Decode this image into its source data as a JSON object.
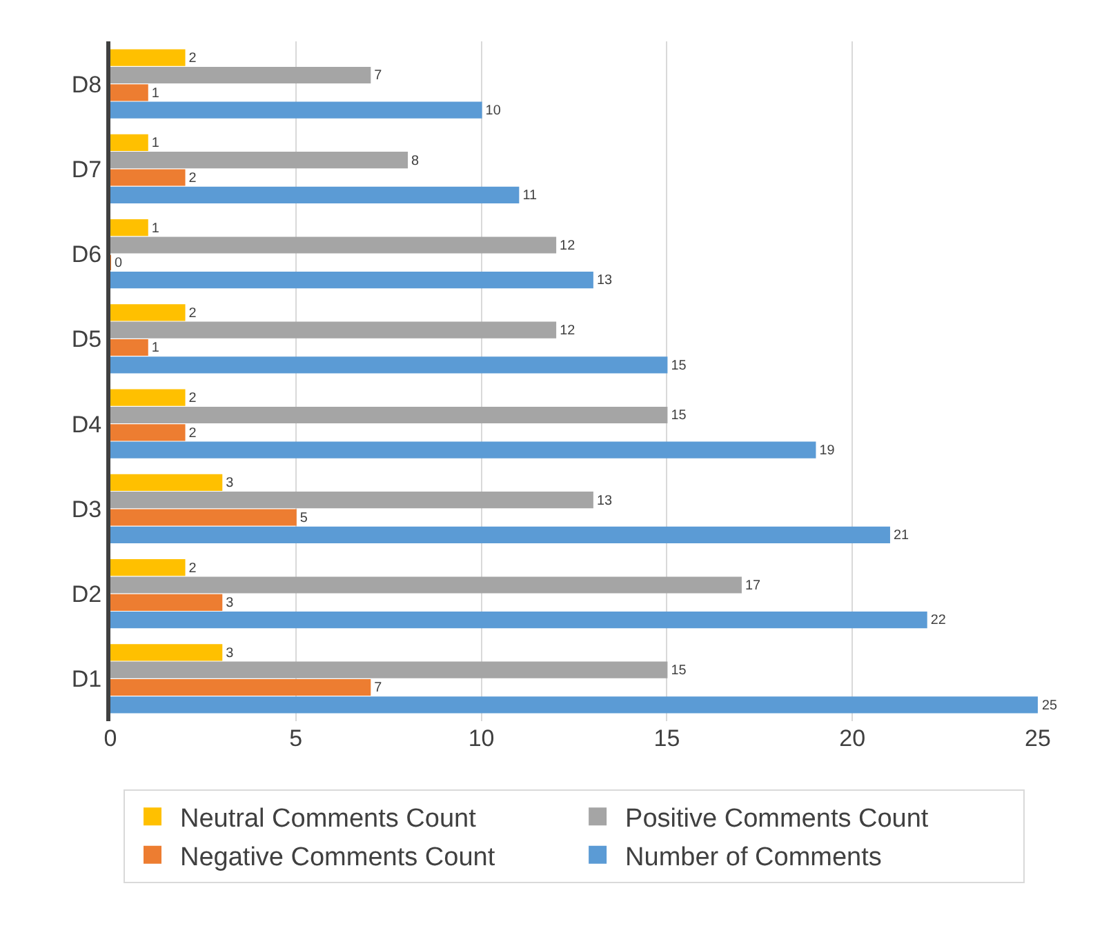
{
  "chart_data": {
    "type": "bar",
    "orientation": "horizontal",
    "categories": [
      "D8",
      "D7",
      "D6",
      "D5",
      "D4",
      "D3",
      "D2",
      "D1"
    ],
    "series": [
      {
        "name": "Number of Comments",
        "color": "#5b9bd5",
        "values": [
          10,
          11,
          13,
          15,
          19,
          21,
          22,
          25
        ]
      },
      {
        "name": "Negative Comments Count",
        "color": "#ed7d31",
        "values": [
          1,
          2,
          0,
          1,
          2,
          5,
          3,
          7
        ]
      },
      {
        "name": "Positive Comments Count",
        "color": "#a5a5a5",
        "values": [
          7,
          8,
          12,
          12,
          15,
          13,
          17,
          15
        ]
      },
      {
        "name": "Neutral Comments Count",
        "color": "#ffc000",
        "values": [
          2,
          1,
          1,
          2,
          2,
          3,
          2,
          3
        ]
      }
    ],
    "xlim": [
      0,
      25
    ],
    "xticks": [
      0,
      5,
      10,
      15,
      20,
      25
    ],
    "grid": "x",
    "legend": "bottom",
    "data_labels": true
  }
}
